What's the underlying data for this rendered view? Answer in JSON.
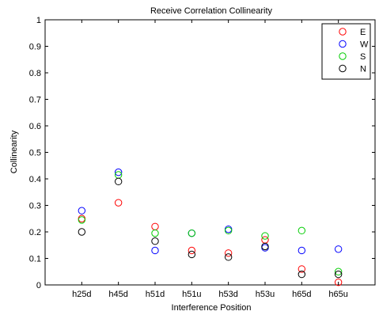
{
  "chart_data": {
    "type": "scatter",
    "title": "Receive Correlation Collinearity",
    "xlabel": "Interference Position",
    "ylabel": "Collinearity",
    "categories": [
      "h25d",
      "h45d",
      "h51d",
      "h51u",
      "h53d",
      "h53u",
      "h65d",
      "h65u"
    ],
    "ylim": [
      0,
      1
    ],
    "yticks": [
      0,
      0.1,
      0.2,
      0.3,
      0.4,
      0.5,
      0.6,
      0.7,
      0.8,
      0.9,
      1
    ],
    "ytick_labels": [
      "0",
      "0.1",
      "0.2",
      "0.3",
      "0.4",
      "0.5",
      "0.6",
      "0.7",
      "0.8",
      "0.9",
      "1"
    ],
    "grid": false,
    "legend_position": "top-right",
    "marker": "open-circle",
    "series": [
      {
        "name": "E",
        "color": "#ff0000",
        "values": [
          0.25,
          0.31,
          0.22,
          0.13,
          0.12,
          0.17,
          0.06,
          0.01
        ]
      },
      {
        "name": "W",
        "color": "#0000ff",
        "values": [
          0.28,
          0.425,
          0.13,
          0.195,
          0.21,
          0.14,
          0.13,
          0.135
        ]
      },
      {
        "name": "S",
        "color": "#00cc00",
        "values": [
          0.245,
          0.415,
          0.195,
          0.195,
          0.205,
          0.185,
          0.205,
          0.05
        ]
      },
      {
        "name": "N",
        "color": "#000000",
        "values": [
          0.2,
          0.39,
          0.165,
          0.115,
          0.105,
          0.145,
          0.04,
          0.04
        ]
      }
    ]
  }
}
